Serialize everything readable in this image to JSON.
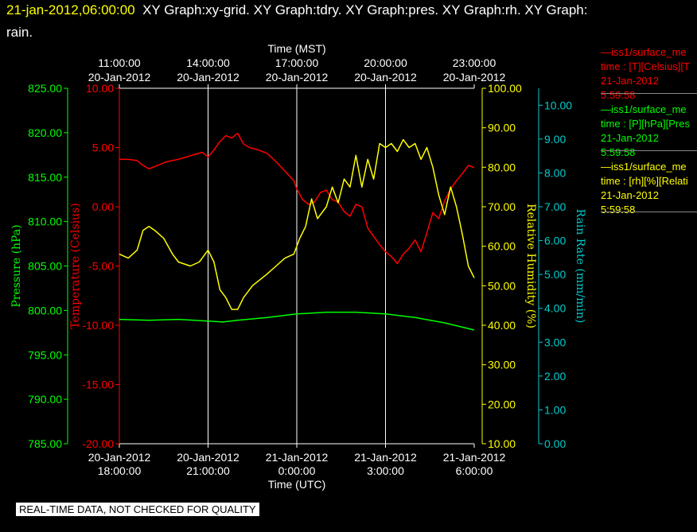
{
  "header": {
    "timestamp": "21-jan-2012,06:00:00",
    "graphs_line1": "XY Graph:xy-grid.  XY Graph:tdry.  XY Graph:pres.  XY Graph:rh.  XY Graph:",
    "graphs_line2": "rain."
  },
  "legend": [
    {
      "line1": "—iss1/surface_me",
      "line2": "time : [T][Celsius][T",
      "line3": "21-Jan-2012",
      "line4": "5:59:58",
      "color": "#ff0000"
    },
    {
      "line1": "—iss1/surface_me",
      "line2": "time : [P][hPa][Pres",
      "line3": "21-Jan-2012",
      "line4": "5:59:58",
      "color": "#00ff00"
    },
    {
      "line1": "—iss1/surface_me",
      "line2": "time : [rh][%][Relati",
      "line3": "21-Jan-2012",
      "line4": "5:59:58",
      "color": "#ffff00"
    }
  ],
  "footer": {
    "quality_notice": "REAL-TIME DATA, NOT CHECKED FOR QUALITY"
  },
  "chart_data": {
    "type": "line",
    "top_axis": {
      "label": "Time (MST)",
      "ticks": [
        {
          "t": 0,
          "line1": "11:00:00",
          "line2": "20-Jan-2012"
        },
        {
          "t": 3,
          "line1": "14:00:00",
          "line2": "20-Jan-2012"
        },
        {
          "t": 6,
          "line1": "17:00:00",
          "line2": "20-Jan-2012"
        },
        {
          "t": 9,
          "line1": "20:00:00",
          "line2": "20-Jan-2012"
        },
        {
          "t": 12,
          "line1": "23:00:00",
          "line2": "20-Jan-2012"
        }
      ]
    },
    "bottom_axis": {
      "label": "Time (UTC)",
      "ticks": [
        {
          "t": 0,
          "line1": "20-Jan-2012",
          "line2": "18:00:00"
        },
        {
          "t": 3,
          "line1": "20-Jan-2012",
          "line2": "21:00:00"
        },
        {
          "t": 6,
          "line1": "21-Jan-2012",
          "line2": "0:00:00"
        },
        {
          "t": 9,
          "line1": "21-Jan-2012",
          "line2": "3:00:00"
        },
        {
          "t": 12,
          "line1": "21-Jan-2012",
          "line2": "6:00:00"
        }
      ]
    },
    "x_range": [
      0,
      12
    ],
    "vertical_gridlines": [
      3,
      6,
      9
    ],
    "axes": {
      "pressure": {
        "label": "Pressure (hPa)",
        "color": "#00ff00",
        "range": [
          785,
          825
        ],
        "ticks": [
          "785.00",
          "790.00",
          "795.00",
          "800.00",
          "805.00",
          "810.00",
          "815.00",
          "820.00",
          "825.00"
        ]
      },
      "temperature": {
        "label": "Temperature (Celsius)",
        "color": "#ff0000",
        "range": [
          -20,
          10
        ],
        "ticks": [
          "-20.00",
          "-15.00",
          "-10.00",
          "-5.00",
          "0.00",
          "5.00",
          "10.00"
        ]
      },
      "rh": {
        "label": "Relative Humidity (%)",
        "color": "#ffff00",
        "range": [
          10,
          100
        ],
        "ticks": [
          "10.00",
          "20.00",
          "30.00",
          "40.00",
          "50.00",
          "60.00",
          "70.00",
          "80.00",
          "90.00",
          "100.00"
        ]
      },
      "rain": {
        "label": "Rain Rate (mm/min)",
        "color": "#00cccc",
        "range": [
          0,
          10.5
        ],
        "ticks": [
          "0.00",
          "1.00",
          "2.00",
          "3.00",
          "4.00",
          "5.00",
          "6.00",
          "7.00",
          "8.00",
          "9.00",
          "10.00"
        ]
      }
    },
    "series": [
      {
        "axis": "temperature",
        "color": "#ff0000",
        "t": [
          0,
          0.3,
          0.6,
          0.8,
          1.0,
          1.3,
          1.6,
          2.0,
          2.4,
          2.8,
          3.0,
          3.2,
          3.4,
          3.6,
          3.8,
          4.0,
          4.2,
          4.4,
          4.7,
          5.0,
          5.3,
          5.6,
          5.9,
          6.0,
          6.2,
          6.4,
          6.6,
          6.8,
          7.0,
          7.2,
          7.4,
          7.6,
          7.8,
          8.0,
          8.2,
          8.4,
          8.6,
          8.8,
          9.0,
          9.2,
          9.4,
          9.6,
          9.8,
          10.0,
          10.2,
          10.4,
          10.6,
          10.8,
          11.0,
          11.2,
          11.4,
          11.6,
          11.8,
          12.0
        ],
        "v": [
          4.0,
          4.0,
          3.9,
          3.5,
          3.2,
          3.5,
          3.8,
          4.0,
          4.3,
          4.6,
          4.2,
          4.8,
          5.5,
          6.0,
          5.8,
          6.2,
          5.3,
          5.0,
          4.8,
          4.5,
          3.8,
          3.0,
          2.2,
          1.5,
          0.6,
          0.2,
          0.4,
          1.2,
          1.4,
          0.6,
          0.4,
          -0.4,
          -0.8,
          0.2,
          0.0,
          -1.8,
          -2.5,
          -3.2,
          -3.8,
          -4.2,
          -4.8,
          -4.0,
          -3.5,
          -2.8,
          -3.8,
          -2.2,
          -0.5,
          -1.0,
          0.5,
          1.5,
          2.2,
          2.8,
          3.5,
          3.3
        ]
      },
      {
        "axis": "pressure",
        "color": "#00ff00",
        "t": [
          0,
          1,
          2,
          3,
          3.5,
          4,
          5,
          6,
          7,
          8,
          9,
          10,
          11,
          11.5,
          12
        ],
        "v": [
          799.0,
          798.9,
          799.0,
          798.8,
          798.7,
          798.9,
          799.2,
          799.6,
          799.8,
          799.8,
          799.6,
          799.2,
          798.6,
          798.2,
          797.8
        ]
      },
      {
        "axis": "rh",
        "color": "#ffff00",
        "t": [
          0,
          0.3,
          0.6,
          0.8,
          1.0,
          1.2,
          1.5,
          1.8,
          2.0,
          2.4,
          2.7,
          3.0,
          3.2,
          3.4,
          3.6,
          3.8,
          4.0,
          4.2,
          4.5,
          5.0,
          5.3,
          5.6,
          5.9,
          6.1,
          6.3,
          6.5,
          6.7,
          7.0,
          7.2,
          7.4,
          7.6,
          7.8,
          8.0,
          8.2,
          8.4,
          8.6,
          8.8,
          9.0,
          9.2,
          9.4,
          9.6,
          9.8,
          10.0,
          10.2,
          10.4,
          10.6,
          10.8,
          11.0,
          11.2,
          11.4,
          11.6,
          11.8,
          12.0
        ],
        "v": [
          58,
          57,
          59,
          64,
          65,
          64,
          62,
          58,
          56,
          55,
          56,
          59,
          56,
          49,
          47,
          44,
          44,
          47,
          50,
          53,
          55,
          57,
          58,
          62,
          65,
          72,
          67,
          70,
          75,
          71,
          77,
          75,
          83,
          75,
          82,
          77,
          86,
          85,
          86,
          84,
          87,
          85,
          86,
          82,
          85,
          80,
          73,
          68,
          75,
          70,
          63,
          55,
          52
        ]
      },
      {
        "axis": "rain",
        "color": "#00cccc",
        "t": [],
        "v": []
      }
    ]
  }
}
